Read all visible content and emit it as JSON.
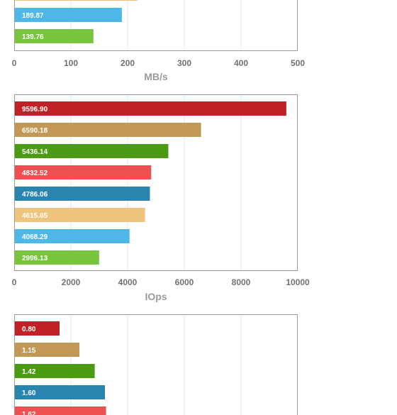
{
  "chart_data": [
    {
      "type": "bar",
      "orientation": "horizontal",
      "xlabel": "MB/s",
      "xlim": [
        0,
        500
      ],
      "xticks": [
        "0",
        "100",
        "200",
        "300",
        "400",
        "500"
      ],
      "grid": true,
      "visible_bars": [
        {
          "label": "",
          "value": 217,
          "color": "#efc47d"
        },
        {
          "label": "189.87",
          "value": 189.87,
          "color": "#4db8e8"
        },
        {
          "label": "139.76",
          "value": 139.76,
          "color": "#78c43c"
        }
      ]
    },
    {
      "type": "bar",
      "orientation": "horizontal",
      "xlabel": "IOps",
      "xlim": [
        0,
        10000
      ],
      "xticks": [
        "0",
        "2000",
        "4000",
        "6000",
        "8000",
        "10000"
      ],
      "grid": true,
      "visible_bars": [
        {
          "label": "9596.90",
          "value": 9596.9,
          "color": "#c02126"
        },
        {
          "label": "6590.18",
          "value": 6590.18,
          "color": "#c29856"
        },
        {
          "label": "5436.14",
          "value": 5436.14,
          "color": "#4a9a12"
        },
        {
          "label": "4832.52",
          "value": 4832.52,
          "color": "#ee5052"
        },
        {
          "label": "4786.06",
          "value": 4786.06,
          "color": "#2a84b0"
        },
        {
          "label": "4615.65",
          "value": 4615.65,
          "color": "#efc47d"
        },
        {
          "label": "4068.29",
          "value": 4068.29,
          "color": "#4db8e8"
        },
        {
          "label": "2996.13",
          "value": 2996.13,
          "color": "#78c43c"
        }
      ]
    },
    {
      "type": "bar",
      "orientation": "horizontal",
      "xlabel": "",
      "xlim": [
        0,
        5
      ],
      "xticks": [],
      "grid": true,
      "visible_bars": [
        {
          "label": "0.80",
          "value": 0.8,
          "color": "#c02126"
        },
        {
          "label": "1.15",
          "value": 1.15,
          "color": "#c29856"
        },
        {
          "label": "1.42",
          "value": 1.42,
          "color": "#4a9a12"
        },
        {
          "label": "1.60",
          "value": 1.6,
          "color": "#2a84b0"
        },
        {
          "label": "1.62",
          "value": 1.62,
          "color": "#ee5052"
        }
      ]
    }
  ]
}
